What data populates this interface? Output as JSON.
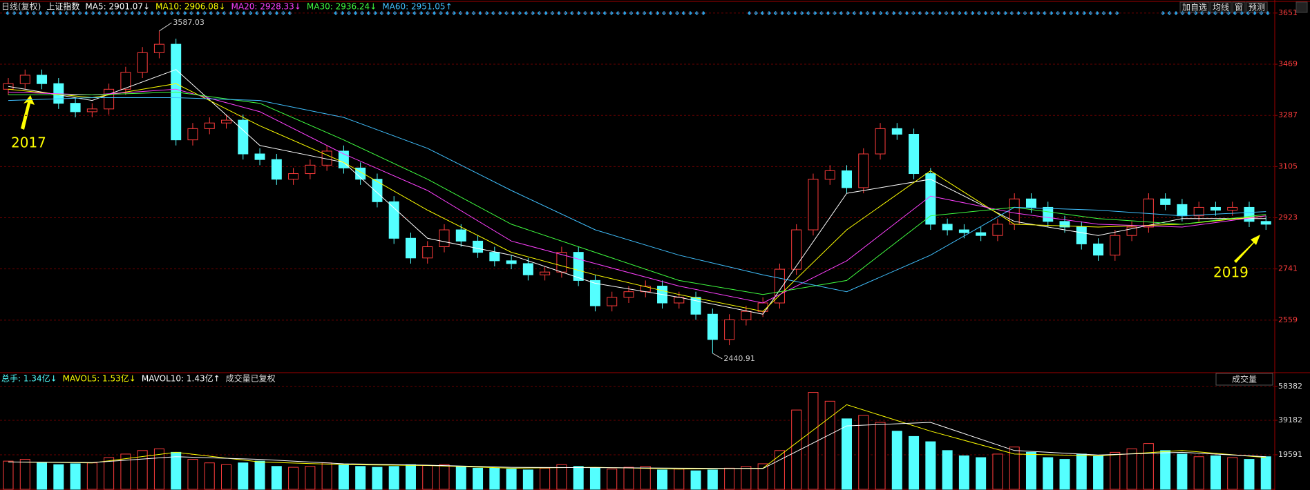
{
  "header": {
    "period": "日线(复权)",
    "symbol": "上证指数"
  },
  "toolbar": [
    "加自选",
    "均线",
    "窗",
    "预测"
  ],
  "chart_data": [
    {
      "type": "candlestick",
      "up_color": "#ff3c3c",
      "down_color": "#54ffff",
      "annotations": [
        "2017",
        "2019"
      ],
      "ylim": [
        2377,
        3663
      ],
      "yticks": [
        2559,
        2741,
        2923,
        3105,
        3287,
        3469,
        3651
      ],
      "grid": true,
      "open": [
        3380,
        3400,
        3430,
        3400,
        3330,
        3300,
        3310,
        3380,
        3440,
        3510,
        3540,
        3200,
        3240,
        3260,
        3270,
        3150,
        3130,
        3060,
        3080,
        3110,
        3160,
        3100,
        3060,
        2980,
        2850,
        2780,
        2820,
        2880,
        2840,
        2800,
        2770,
        2760,
        2720,
        2730,
        2800,
        2700,
        2610,
        2640,
        2660,
        2680,
        2620,
        2640,
        2580,
        2490,
        2560,
        2590,
        2620,
        2740,
        2880,
        3060,
        3090,
        3030,
        3150,
        3240,
        3220,
        3080,
        2900,
        2880,
        2870,
        2860,
        2900,
        2990,
        2960,
        2910,
        2890,
        2830,
        2790,
        2860,
        2890,
        2990,
        2970,
        2930,
        2960,
        2950,
        2960,
        2910
      ],
      "high": [
        3420,
        3450,
        3450,
        3420,
        3350,
        3330,
        3400,
        3460,
        3530,
        3587.03,
        3560,
        3260,
        3280,
        3290,
        3290,
        3170,
        3150,
        3100,
        3130,
        3180,
        3180,
        3120,
        3080,
        3000,
        2870,
        2840,
        2900,
        2900,
        2860,
        2820,
        2790,
        2780,
        2750,
        2820,
        2820,
        2720,
        2660,
        2680,
        2700,
        2700,
        2660,
        2660,
        2600,
        2580,
        2610,
        2640,
        2760,
        2900,
        3080,
        3110,
        3110,
        3170,
        3260,
        3260,
        3240,
        3100,
        2920,
        2900,
        2890,
        2920,
        3010,
        3010,
        2980,
        2930,
        2910,
        2850,
        2880,
        2910,
        3010,
        3010,
        2990,
        2980,
        2980,
        2980,
        2980,
        2930
      ],
      "low": [
        3360,
        3380,
        3380,
        3310,
        3280,
        3280,
        3290,
        3360,
        3420,
        3490,
        3180,
        3180,
        3220,
        3240,
        3130,
        3110,
        3040,
        3040,
        3060,
        3090,
        3080,
        3040,
        2960,
        2830,
        2760,
        2760,
        2800,
        2820,
        2780,
        2750,
        2740,
        2700,
        2700,
        2710,
        2680,
        2590,
        2590,
        2620,
        2640,
        2600,
        2600,
        2560,
        2440.91,
        2470,
        2540,
        2570,
        2600,
        2720,
        2860,
        3040,
        3010,
        3010,
        3130,
        3200,
        3060,
        2880,
        2860,
        2850,
        2840,
        2840,
        2880,
        2940,
        2890,
        2870,
        2810,
        2770,
        2770,
        2840,
        2870,
        2950,
        2910,
        2910,
        2930,
        2930,
        2890,
        2880
      ],
      "close": [
        3400,
        3430,
        3400,
        3330,
        3300,
        3310,
        3380,
        3440,
        3510,
        3540,
        3200,
        3240,
        3260,
        3270,
        3150,
        3130,
        3060,
        3080,
        3110,
        3160,
        3100,
        3060,
        2980,
        2850,
        2780,
        2820,
        2880,
        2840,
        2800,
        2770,
        2760,
        2720,
        2730,
        2800,
        2700,
        2610,
        2640,
        2660,
        2680,
        2620,
        2640,
        2580,
        2490,
        2560,
        2590,
        2620,
        2740,
        2880,
        3060,
        3090,
        3030,
        3150,
        3240,
        3220,
        3080,
        2900,
        2880,
        2870,
        2860,
        2900,
        2990,
        2960,
        2910,
        2890,
        2830,
        2790,
        2860,
        2890,
        2990,
        2970,
        2930,
        2960,
        2950,
        2960,
        2910,
        2900
      ],
      "ma_x": [
        0,
        5,
        10,
        15,
        20,
        25,
        30,
        35,
        40,
        45,
        50,
        55,
        60,
        65,
        70,
        75
      ],
      "series": [
        {
          "name": "MA5: 2901.07↓",
          "color": "#ffffff",
          "values": [
            3390,
            3340,
            3450,
            3180,
            3120,
            2850,
            2790,
            2690,
            2640,
            2580,
            3010,
            3060,
            2910,
            2860,
            2920,
            2920
          ]
        },
        {
          "name": "MA10: 2906.08↓",
          "color": "#ffff00",
          "values": [
            3380,
            3350,
            3400,
            3250,
            3120,
            2950,
            2800,
            2720,
            2650,
            2590,
            2880,
            3090,
            2900,
            2890,
            2900,
            2930
          ]
        },
        {
          "name": "MA20: 2928.33↓",
          "color": "#ff40ff",
          "values": [
            3370,
            3360,
            3380,
            3300,
            3150,
            3020,
            2840,
            2760,
            2680,
            2620,
            2770,
            3000,
            2940,
            2900,
            2890,
            2930
          ]
        },
        {
          "name": "MA30: 2936.24↓",
          "color": "#40ff40",
          "values": [
            3360,
            3360,
            3370,
            3330,
            3200,
            3060,
            2900,
            2800,
            2700,
            2650,
            2700,
            2930,
            2960,
            2920,
            2900,
            2935
          ]
        },
        {
          "name": "MA60: 2951.05↑",
          "color": "#40c0ff",
          "values": [
            3340,
            3350,
            3350,
            3340,
            3280,
            3170,
            3020,
            2880,
            2790,
            2720,
            2660,
            2790,
            2960,
            2950,
            2930,
            2945
          ]
        }
      ]
    },
    {
      "type": "bar",
      "title": "成交量",
      "total_label": "总手: 1.34亿↓",
      "note": "成交量已复权",
      "ylim": [
        0,
        61100
      ],
      "yticks": [
        19591,
        39182,
        58382
      ],
      "grid": true,
      "values": [
        16000,
        17000,
        15000,
        14000,
        14500,
        15000,
        18000,
        20000,
        22000,
        23000,
        21000,
        17000,
        15000,
        14000,
        15000,
        16000,
        13000,
        12500,
        13000,
        15000,
        14000,
        13000,
        12500,
        13000,
        14000,
        13500,
        14000,
        13000,
        12000,
        12000,
        11500,
        11000,
        12000,
        14000,
        13000,
        12000,
        11500,
        12500,
        13000,
        11000,
        11500,
        10500,
        11000,
        12000,
        13000,
        14500,
        22000,
        45000,
        55000,
        50000,
        40000,
        42000,
        38000,
        33000,
        30000,
        27000,
        22000,
        19000,
        18000,
        20000,
        24000,
        21000,
        18000,
        17000,
        20000,
        19000,
        21000,
        23000,
        26000,
        22000,
        20000,
        18500,
        19000,
        18000,
        17000,
        18500
      ],
      "ma_x": [
        0,
        5,
        10,
        15,
        20,
        25,
        30,
        35,
        40,
        45,
        50,
        55,
        60,
        65,
        70,
        75
      ],
      "series": [
        {
          "name": "MAVOL5: 1.53亿↓",
          "color": "#ffff00",
          "values": [
            15500,
            15000,
            21000,
            15500,
            14000,
            13500,
            12000,
            12500,
            11500,
            12000,
            48000,
            33000,
            20000,
            19000,
            22000,
            18000
          ]
        },
        {
          "name": "MAVOL10: 1.43亿↑",
          "color": "#ffffff",
          "values": [
            15500,
            15200,
            18500,
            17000,
            14500,
            13700,
            12500,
            12300,
            12000,
            11800,
            36000,
            38000,
            22000,
            19500,
            21000,
            18500
          ]
        }
      ]
    }
  ]
}
